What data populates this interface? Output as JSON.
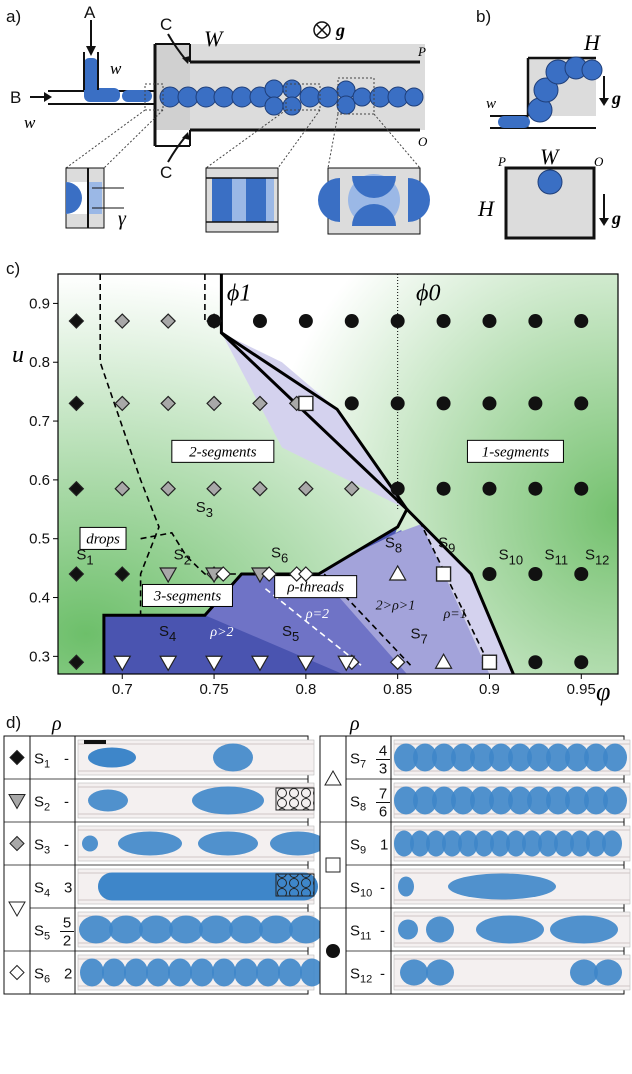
{
  "panel_labels": {
    "a": "a)",
    "b": "b)",
    "c": "c)",
    "d": "d)"
  },
  "panel_a": {
    "inlet_A": "A",
    "inlet_B": "B",
    "inlet_C_top": "C",
    "inlet_C_bottom": "C",
    "width_w_top": "w",
    "width_w_left": "w",
    "width_W": "W",
    "gravity": "g",
    "corner_P": "P",
    "corner_O": "O",
    "gamma": "γ"
  },
  "panel_b": {
    "H_top": "H",
    "w": "w",
    "g_top": "g",
    "P": "P",
    "W": "W",
    "O": "O",
    "H_bottom": "H",
    "g_bottom": "g"
  },
  "chart_data": {
    "type": "scatter",
    "xlabel": "φ",
    "ylabel": "u",
    "xlim": [
      0.665,
      0.97
    ],
    "ylim": [
      0.27,
      0.95
    ],
    "xticks": [
      0.7,
      0.75,
      0.8,
      0.85,
      0.9,
      0.95
    ],
    "yticks": [
      0.3,
      0.4,
      0.5,
      0.6,
      0.7,
      0.8,
      0.9
    ],
    "xtick_labels": [
      "0.7",
      "0.75",
      "0.8",
      "0.85",
      "0.9",
      "0.95"
    ],
    "ytick_labels": [
      "0.3",
      "0.4",
      "0.5",
      "0.6",
      "0.7",
      "0.8",
      "0.9"
    ],
    "phi_labels": {
      "phi1": "ϕ1",
      "phi0": "ϕ0"
    },
    "regions": [
      {
        "label": "drops"
      },
      {
        "label": "2-segments"
      },
      {
        "label": "3-segments"
      },
      {
        "label": "ρ-threads"
      },
      {
        "label": "1-segments"
      }
    ],
    "region_annotations": [
      "ρ>2",
      "ρ=2",
      "2>ρ>1",
      "ρ=1"
    ],
    "state_labels": [
      {
        "id": "S1",
        "sub": "1",
        "x": 0.675,
        "y": 0.465
      },
      {
        "id": "S2",
        "sub": "2",
        "x": 0.728,
        "y": 0.465
      },
      {
        "id": "S3",
        "sub": "3",
        "x": 0.74,
        "y": 0.545
      },
      {
        "id": "S4",
        "sub": "4",
        "x": 0.72,
        "y": 0.335
      },
      {
        "id": "S5",
        "sub": "5",
        "x": 0.787,
        "y": 0.335
      },
      {
        "id": "S6",
        "sub": "6",
        "x": 0.781,
        "y": 0.468
      },
      {
        "id": "S7",
        "sub": "7",
        "x": 0.857,
        "y": 0.33
      },
      {
        "id": "S8",
        "sub": "8",
        "x": 0.843,
        "y": 0.485
      },
      {
        "id": "S9",
        "sub": "9",
        "x": 0.872,
        "y": 0.485
      },
      {
        "id": "S10",
        "sub": "10",
        "x": 0.905,
        "y": 0.465
      },
      {
        "id": "S11",
        "sub": "11",
        "x": 0.93,
        "y": 0.465
      },
      {
        "id": "S12",
        "sub": "12",
        "x": 0.952,
        "y": 0.465
      }
    ],
    "series": [
      {
        "marker": "diamond-black",
        "points": [
          [
            0.675,
            0.87
          ],
          [
            0.675,
            0.73
          ],
          [
            0.675,
            0.585
          ],
          [
            0.675,
            0.44
          ],
          [
            0.7,
            0.44
          ],
          [
            0.675,
            0.29
          ]
        ]
      },
      {
        "marker": "diamond-gray",
        "points": [
          [
            0.7,
            0.87
          ],
          [
            0.725,
            0.87
          ],
          [
            0.75,
            0.87
          ],
          [
            0.7,
            0.73
          ],
          [
            0.725,
            0.73
          ],
          [
            0.75,
            0.73
          ],
          [
            0.775,
            0.73
          ],
          [
            0.7,
            0.585
          ],
          [
            0.725,
            0.585
          ],
          [
            0.75,
            0.585
          ],
          [
            0.775,
            0.585
          ],
          [
            0.8,
            0.585
          ],
          [
            0.825,
            0.585
          ],
          [
            0.75,
            0.44
          ],
          [
            0.795,
            0.73
          ]
        ]
      },
      {
        "marker": "triangle-down-gray",
        "points": [
          [
            0.725,
            0.44
          ],
          [
            0.75,
            0.44
          ],
          [
            0.775,
            0.44
          ]
        ]
      },
      {
        "marker": "diamond-open",
        "points": [
          [
            0.755,
            0.44
          ],
          [
            0.78,
            0.44
          ],
          [
            0.795,
            0.44
          ],
          [
            0.8,
            0.44
          ],
          [
            0.825,
            0.29
          ],
          [
            0.85,
            0.29
          ],
          [
            0.9,
            0.29
          ]
        ]
      },
      {
        "marker": "triangle-down-open",
        "points": [
          [
            0.7,
            0.29
          ],
          [
            0.725,
            0.29
          ],
          [
            0.75,
            0.29
          ],
          [
            0.775,
            0.29
          ],
          [
            0.8,
            0.29
          ],
          [
            0.822,
            0.29
          ]
        ]
      },
      {
        "marker": "triangle-up-open",
        "points": [
          [
            0.85,
            0.44
          ],
          [
            0.875,
            0.29
          ]
        ]
      },
      {
        "marker": "square-open",
        "points": [
          [
            0.8,
            0.73
          ],
          [
            0.875,
            0.44
          ],
          [
            0.9,
            0.29
          ]
        ]
      },
      {
        "marker": "circle-black",
        "points": [
          [
            0.75,
            0.87
          ],
          [
            0.775,
            0.87
          ],
          [
            0.8,
            0.87
          ],
          [
            0.825,
            0.87
          ],
          [
            0.85,
            0.87
          ],
          [
            0.875,
            0.87
          ],
          [
            0.9,
            0.87
          ],
          [
            0.925,
            0.87
          ],
          [
            0.95,
            0.87
          ],
          [
            0.825,
            0.73
          ],
          [
            0.85,
            0.73
          ],
          [
            0.875,
            0.73
          ],
          [
            0.9,
            0.73
          ],
          [
            0.925,
            0.73
          ],
          [
            0.95,
            0.73
          ],
          [
            0.85,
            0.585
          ],
          [
            0.875,
            0.585
          ],
          [
            0.9,
            0.585
          ],
          [
            0.925,
            0.585
          ],
          [
            0.95,
            0.585
          ],
          [
            0.9,
            0.44
          ],
          [
            0.925,
            0.44
          ],
          [
            0.95,
            0.44
          ],
          [
            0.925,
            0.29
          ],
          [
            0.95,
            0.29
          ]
        ]
      }
    ]
  },
  "panel_d": {
    "rho_header_left": "ρ",
    "rho_header_right": "ρ",
    "left_rows": [
      {
        "label": "S",
        "sub": "1",
        "rho": "-"
      },
      {
        "label": "S",
        "sub": "2",
        "rho": "-"
      },
      {
        "label": "S",
        "sub": "3",
        "rho": "-"
      },
      {
        "label": "S",
        "sub": "4",
        "rho": "3"
      },
      {
        "label": "S",
        "sub": "5",
        "rho_num": "5",
        "rho_den": "2"
      },
      {
        "label": "S",
        "sub": "6",
        "rho": "2"
      }
    ],
    "right_rows": [
      {
        "label": "S",
        "sub": "7",
        "rho_num": "4",
        "rho_den": "3"
      },
      {
        "label": "S",
        "sub": "8",
        "rho_num": "7",
        "rho_den": "6"
      },
      {
        "label": "S",
        "sub": "9",
        "rho": "1"
      },
      {
        "label": "S",
        "sub": "10",
        "rho": "-"
      },
      {
        "label": "S",
        "sub": "11",
        "rho": "-"
      },
      {
        "label": "S",
        "sub": "12",
        "rho": "-"
      }
    ]
  },
  "colors": {
    "drop_blue": "#3a6fc4",
    "light_blue": "#9bb8e6",
    "region_dark": "#4a54b0",
    "region_mid": "#8c8fd2",
    "region_light": "#d4d2ee",
    "green": "#5aa860"
  }
}
